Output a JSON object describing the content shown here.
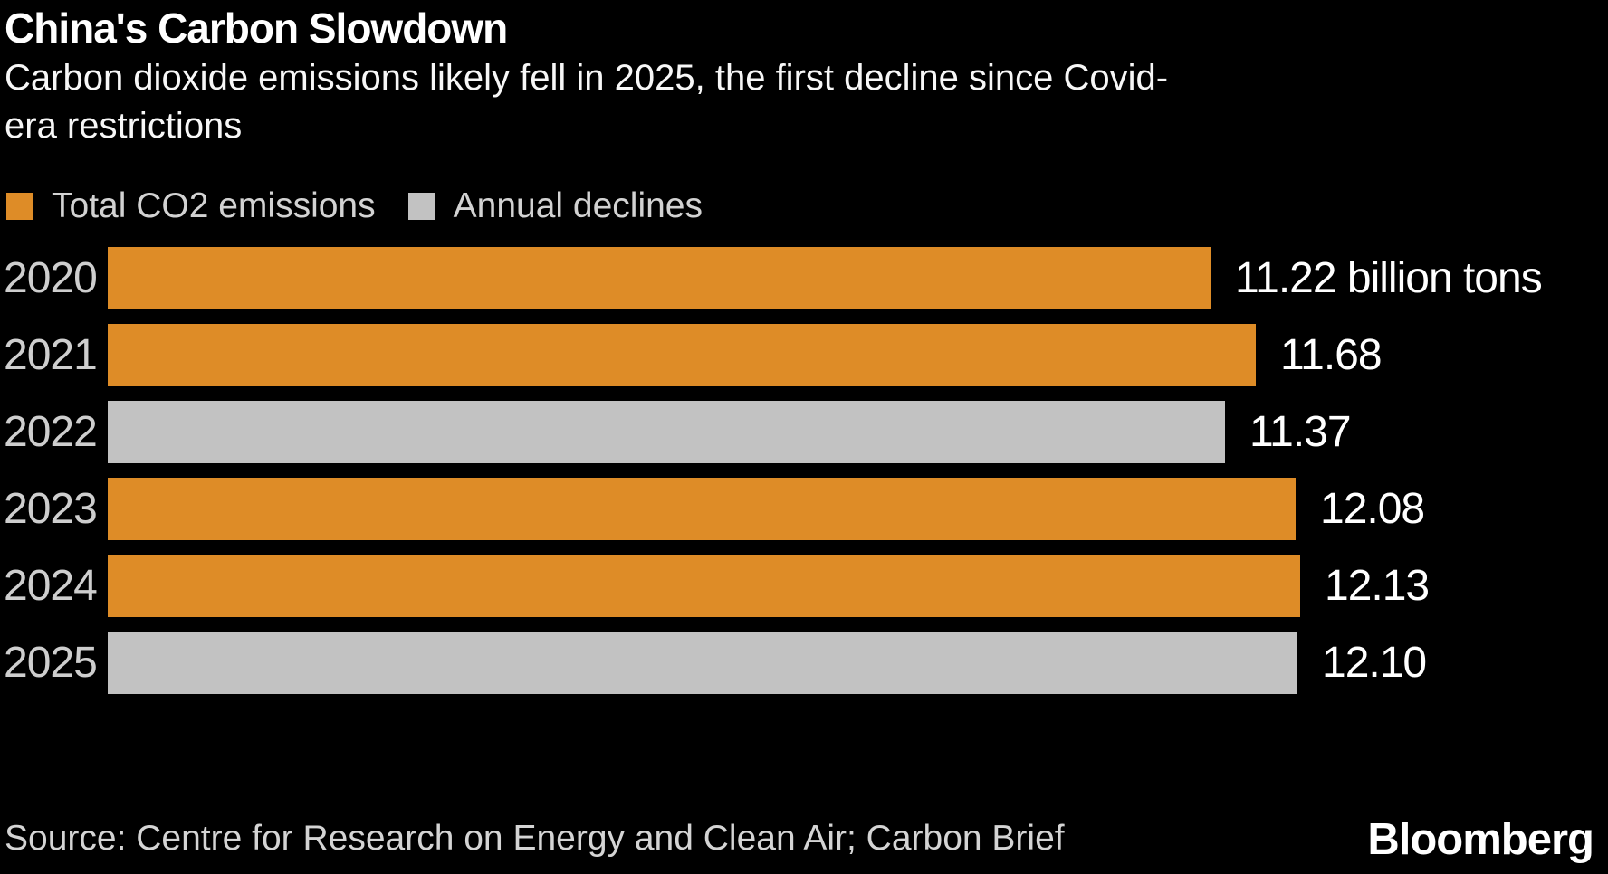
{
  "title": "China's Carbon Slowdown",
  "subtitle_line1": "Carbon dioxide emissions likely fell in 2025, the first decline since Covid-",
  "subtitle_line2": "era restrictions",
  "legend": {
    "items": [
      {
        "label": "Total CO2 emissions",
        "color": "#DE8C27"
      },
      {
        "label": "Annual declines",
        "color": "#C2C2C2"
      }
    ]
  },
  "chart_data": {
    "type": "bar",
    "orientation": "horizontal",
    "title": "China's Carbon Slowdown",
    "subtitle": "Carbon dioxide emissions likely fell in 2025, the first decline since Covid-era restrictions",
    "categories": [
      "2020",
      "2021",
      "2022",
      "2023",
      "2024",
      "2025"
    ],
    "values": [
      11.22,
      11.68,
      11.37,
      12.08,
      12.13,
      12.1
    ],
    "value_labels": [
      "11.22 billion tons",
      "11.68",
      "11.37",
      "12.08",
      "12.13",
      "12.10"
    ],
    "unit": "billion tons",
    "series_membership": [
      "total",
      "decline_prev_year_higher_no",
      "decline",
      "total",
      "total",
      "decline"
    ],
    "bar_colors": [
      "#DE8C27",
      "#DE8C27",
      "#C2C2C2",
      "#DE8C27",
      "#DE8C27",
      "#C2C2C2"
    ],
    "series": [
      {
        "name": "Total CO2 emissions",
        "color": "#DE8C27",
        "years": [
          "2020",
          "2021",
          "2023",
          "2024"
        ],
        "values": [
          11.22,
          11.68,
          12.08,
          12.13
        ]
      },
      {
        "name": "Annual declines",
        "color": "#C2C2C2",
        "years": [
          "2022",
          "2025"
        ],
        "values": [
          11.37,
          12.1
        ]
      }
    ],
    "xlim": [
      0,
      12.13
    ],
    "grid": false,
    "axis_ticks_visible": false,
    "legend_position": "top",
    "background_color": "#000000"
  },
  "source": "Source: Centre for Research on Energy and Clean Air; Carbon Brief",
  "brand": "Bloomberg"
}
